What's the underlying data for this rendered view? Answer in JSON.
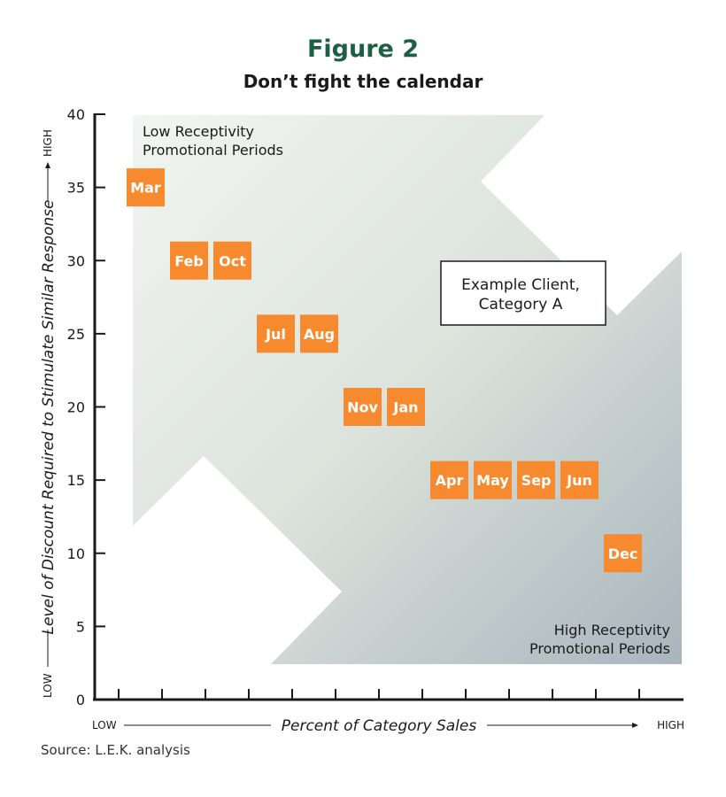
{
  "header": {
    "figure_label": "Figure 2",
    "title": "Don’t fight the calendar"
  },
  "source": "Source: L.E.K. analysis",
  "colors": {
    "box": "#f7892f",
    "title_green": "#1c5f45",
    "band_light": "#f1f4ef",
    "band_dark": "#a9b5bb"
  },
  "chart_data": {
    "type": "scatter",
    "ylim": [
      0,
      40
    ],
    "yticks": [
      "0",
      "5",
      "10",
      "15",
      "20",
      "25",
      "30",
      "35",
      "40"
    ],
    "ylabel": "Level of Discount Required to  Stimulate Similar Response",
    "ylabel_low": "LOW",
    "ylabel_high": "HIGH",
    "xlabel": "Percent of Category Sales",
    "xlabel_low": "LOW",
    "xlabel_high": "HIGH",
    "x_scale": "ordinal, 13 unlabeled ticks",
    "grid": false,
    "points": [
      {
        "label": "Mar",
        "x": 1,
        "y": 35
      },
      {
        "label": "Feb",
        "x": 2,
        "y": 30
      },
      {
        "label": "Oct",
        "x": 3,
        "y": 30
      },
      {
        "label": "Jul",
        "x": 4,
        "y": 25
      },
      {
        "label": "Aug",
        "x": 5,
        "y": 25
      },
      {
        "label": "Nov",
        "x": 6,
        "y": 20
      },
      {
        "label": "Jan",
        "x": 7,
        "y": 20
      },
      {
        "label": "Apr",
        "x": 8,
        "y": 15
      },
      {
        "label": "May",
        "x": 9,
        "y": 15
      },
      {
        "label": "Sep",
        "x": 10,
        "y": 15
      },
      {
        "label": "Jun",
        "x": 11,
        "y": 15
      },
      {
        "label": "Dec",
        "x": 12,
        "y": 10
      }
    ],
    "annotations": {
      "low_receptivity": [
        "Low Receptivity",
        "Promotional Periods"
      ],
      "high_receptivity": [
        "High Receptivity",
        "Promotional Periods"
      ],
      "example_client": [
        "Example Client,",
        "Category A"
      ]
    }
  }
}
